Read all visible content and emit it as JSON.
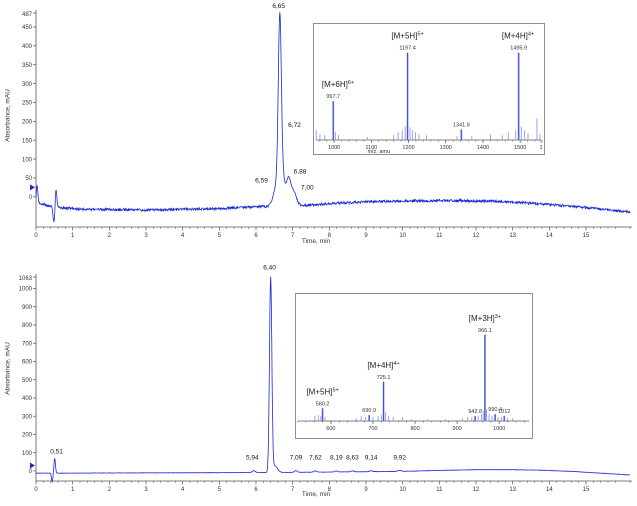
{
  "colors": {
    "trace": "#1b2ad6",
    "bar_minor": "#8d9ae9",
    "bar_main": "#3a4bd8",
    "axis": "#555555",
    "text": "#222222",
    "tick_text": "#333333",
    "inset_border": "#8f8f8f",
    "background": "#ffffff"
  },
  "chart_data": {
    "type": "line",
    "description": "Two HPLC chromatograms (absorbance vs time) each with an inset ESI mass spectrum",
    "panels": [
      {
        "id": "top",
        "ylabel": "Absorbance, mAU",
        "xlabel": "Time, min",
        "y_axis_max_label": "487",
        "ylim": [
          -80,
          487
        ],
        "xlim": [
          0,
          16.2
        ],
        "y_ticks": [
          "450",
          "400",
          "350",
          "300",
          "250",
          "200",
          "150",
          "100",
          "50",
          "0"
        ],
        "x_ticks": [
          "0",
          "1",
          "2",
          "3",
          "4",
          "5",
          "6",
          "7",
          "8",
          "9",
          "10",
          "11",
          "12",
          "13",
          "14",
          "15"
        ],
        "marker_mau": 25,
        "retention_peaks": [
          {
            "label": "6,65",
            "label_t": 6.62,
            "label_mau": 500
          },
          {
            "label": "6,72",
            "label_t": 7.05,
            "label_mau": 185
          },
          {
            "label": "6,59",
            "label_t": 6.15,
            "label_mau": 38
          },
          {
            "label": "6,88",
            "label_t": 7.2,
            "label_mau": 62
          },
          {
            "label": "7,00",
            "label_t": 7.4,
            "label_mau": 20
          }
        ],
        "trace": {
          "baseline": [
            [
              0,
              -15
            ],
            [
              0.35,
              -24
            ],
            [
              0.6,
              -28
            ],
            [
              1.2,
              -33
            ],
            [
              3,
              -35
            ],
            [
              5,
              -31
            ],
            [
              6.2,
              -26
            ],
            [
              7.2,
              -24
            ],
            [
              8,
              -18
            ],
            [
              9,
              -13
            ],
            [
              10,
              -11
            ],
            [
              11.5,
              -10
            ],
            [
              12.5,
              -12
            ],
            [
              13.5,
              -17
            ],
            [
              14.5,
              -24
            ],
            [
              15.5,
              -33
            ],
            [
              16.2,
              -40
            ]
          ],
          "peaks": [
            [
              0.03,
              45,
              0.02
            ],
            [
              0.49,
              -42,
              0.025
            ],
            [
              0.545,
              48,
              0.022
            ],
            [
              6.65,
              465,
              0.042
            ],
            [
              6.57,
              55,
              0.09
            ],
            [
              6.74,
              60,
              0.05
            ],
            [
              6.88,
              68,
              0.06
            ],
            [
              7.02,
              38,
              0.08
            ]
          ],
          "noise_mau": 3.2,
          "seed": 7
        },
        "inset": {
          "mz_range": [
            946,
            1564
          ],
          "xlabel": "m/z, amu",
          "xlabel_mz": 1120,
          "x_ticks": [
            {
              "label": "1000",
              "mz": 1000
            },
            {
              "label": "1100",
              "mz": 1100
            },
            {
              "label": "1200",
              "mz": 1200
            },
            {
              "label": "1300",
              "mz": 1300
            },
            {
              "label": "1400",
              "mz": 1400
            },
            {
              "label": "1500",
              "mz": 1500
            },
            {
              "label": "1",
              "mz": 1556
            }
          ],
          "charge_labels": [
            {
              "base": "[M+6H]",
              "sup": "6+",
              "mz": 997.7,
              "h": 0.4
            },
            {
              "base": "[M+5H]",
              "sup": "5+",
              "mz": 1197.4,
              "h": 0.9
            },
            {
              "base": "[M+4H]",
              "sup": "4+",
              "mz": 1495.9,
              "h": 0.9
            }
          ],
          "labeled_peaks": [
            {
              "label": "997.7",
              "mz": 997.7,
              "h": 0.4
            },
            {
              "label": "1197.4",
              "mz": 1197.4,
              "h": 0.9
            },
            {
              "label": "1341.9",
              "mz": 1341.9,
              "h": 0.11
            },
            {
              "label": "1495.9",
              "mz": 1495.9,
              "h": 0.9
            }
          ],
          "minor_bars": [
            [
              952,
              0.1
            ],
            [
              962,
              0.06
            ],
            [
              975,
              0.05
            ],
            [
              1004,
              0.08
            ],
            [
              1012,
              0.05
            ],
            [
              1090,
              0.03
            ],
            [
              1160,
              0.05
            ],
            [
              1172,
              0.08
            ],
            [
              1183,
              0.1
            ],
            [
              1191,
              0.14
            ],
            [
              1204,
              0.13
            ],
            [
              1211,
              0.1
            ],
            [
              1219,
              0.08
            ],
            [
              1228,
              0.06
            ],
            [
              1248,
              0.05
            ],
            [
              1330,
              0.04
            ],
            [
              1370,
              0.04
            ],
            [
              1420,
              0.06
            ],
            [
              1452,
              0.05
            ],
            [
              1468,
              0.08
            ],
            [
              1488,
              0.1
            ],
            [
              1503,
              0.14
            ],
            [
              1512,
              0.1
            ],
            [
              1521,
              0.07
            ],
            [
              1545,
              0.22
            ],
            [
              1553,
              0.06
            ]
          ]
        }
      },
      {
        "id": "bottom",
        "ylabel": "Absorbance, mAU",
        "xlabel": "Time, min",
        "y_axis_max_label": "1063",
        "ylim": [
          -55,
          1063
        ],
        "xlim": [
          0,
          16.2
        ],
        "y_ticks": [
          "1000",
          "900",
          "800",
          "700",
          "600",
          "500",
          "400",
          "300",
          "200",
          "100",
          "0"
        ],
        "x_ticks": [
          "0",
          "1",
          "2",
          "3",
          "4",
          "5",
          "6",
          "7",
          "8",
          "9",
          "10",
          "11",
          "12",
          "13",
          "14",
          "15"
        ],
        "marker_mau": 30,
        "retention_peaks": [
          {
            "label": "0,51",
            "label_t": 0.56,
            "label_mau": 95
          },
          {
            "label": "5,94",
            "label_t": 5.9,
            "label_mau": 62
          },
          {
            "label": "6,40",
            "label_t": 6.37,
            "label_mau": 1105
          },
          {
            "label": "7,09",
            "label_t": 7.09,
            "label_mau": 62
          },
          {
            "label": "7,62",
            "label_t": 7.62,
            "label_mau": 62
          },
          {
            "label": "8,19",
            "label_t": 8.19,
            "label_mau": 62
          },
          {
            "label": "8,63",
            "label_t": 8.63,
            "label_mau": 62
          },
          {
            "label": "9,14",
            "label_t": 9.14,
            "label_mau": 62
          },
          {
            "label": "9,92",
            "label_t": 9.92,
            "label_mau": 62
          }
        ],
        "trace": {
          "baseline": [
            [
              0,
              -12
            ],
            [
              0.8,
              -12
            ],
            [
              2,
              -11
            ],
            [
              4,
              -10
            ],
            [
              5.5,
              -9
            ],
            [
              6.8,
              -8
            ],
            [
              8,
              -6
            ],
            [
              9,
              -4
            ],
            [
              10,
              -2
            ],
            [
              11,
              3
            ],
            [
              12,
              7
            ],
            [
              13,
              7
            ],
            [
              13.8,
              4
            ],
            [
              14.6,
              -2
            ],
            [
              15.4,
              -12
            ],
            [
              16.2,
              -22
            ]
          ],
          "peaks": [
            [
              0.44,
              -48,
              0.018
            ],
            [
              0.51,
              80,
              0.02
            ],
            [
              5.94,
              10,
              0.04
            ],
            [
              6.4,
              1065,
              0.032
            ],
            [
              6.52,
              35,
              0.07
            ],
            [
              7.09,
              9,
              0.04
            ],
            [
              7.62,
              7,
              0.04
            ],
            [
              8.19,
              6,
              0.04
            ],
            [
              8.63,
              5,
              0.04
            ],
            [
              9.14,
              5,
              0.04
            ],
            [
              9.92,
              5,
              0.05
            ]
          ],
          "noise_mau": 0.9,
          "seed": 3
        },
        "inset": {
          "mz_range": [
            517,
            1078
          ],
          "xlabel": "",
          "xlabel_mz": 800,
          "x_ticks": [
            {
              "label": "600",
              "mz": 600
            },
            {
              "label": "700",
              "mz": 700
            },
            {
              "label": "800",
              "mz": 800
            },
            {
              "label": "900",
              "mz": 900
            },
            {
              "label": "1000",
              "mz": 1000
            }
          ],
          "charge_labels": [
            {
              "base": "[M+5H]",
              "sup": "5+",
              "mz": 580.2,
              "h": 0.13
            },
            {
              "base": "[M+4H]",
              "sup": "4+",
              "mz": 725.1,
              "h": 0.4
            },
            {
              "base": "[M+3H]",
              "sup": "3+",
              "mz": 966.1,
              "h": 0.88
            }
          ],
          "labeled_peaks": [
            {
              "label": "580.2",
              "mz": 580.2,
              "h": 0.13
            },
            {
              "label": "690.9",
              "mz": 690.9,
              "h": 0.06
            },
            {
              "label": "725.1",
              "mz": 725.1,
              "h": 0.4
            },
            {
              "label": "942.8",
              "mz": 942.8,
              "h": 0.05
            },
            {
              "label": "966.1",
              "mz": 966.1,
              "h": 0.88
            },
            {
              "label": "990.4",
              "mz": 990.4,
              "h": 0.07
            },
            {
              "label": "1012",
              "mz": 1012,
              "h": 0.05
            }
          ],
          "minor_bars": [
            [
              562,
              0.05
            ],
            [
              570,
              0.06
            ],
            [
              576,
              0.05
            ],
            [
              586,
              0.04
            ],
            [
              660,
              0.03
            ],
            [
              672,
              0.05
            ],
            [
              682,
              0.04
            ],
            [
              700,
              0.04
            ],
            [
              712,
              0.05
            ],
            [
              720,
              0.06
            ],
            [
              730,
              0.09
            ],
            [
              737,
              0.05
            ],
            [
              748,
              0.04
            ],
            [
              770,
              0.04
            ],
            [
              792,
              0.02
            ],
            [
              830,
              0.02
            ],
            [
              872,
              0.02
            ],
            [
              912,
              0.03
            ],
            [
              925,
              0.04
            ],
            [
              935,
              0.04
            ],
            [
              950,
              0.05
            ],
            [
              958,
              0.07
            ],
            [
              962,
              0.1
            ],
            [
              970,
              0.12
            ],
            [
              976,
              0.07
            ],
            [
              983,
              0.05
            ],
            [
              997,
              0.04
            ],
            [
              1005,
              0.04
            ],
            [
              1020,
              0.03
            ],
            [
              1032,
              0.03
            ]
          ]
        }
      }
    ]
  }
}
